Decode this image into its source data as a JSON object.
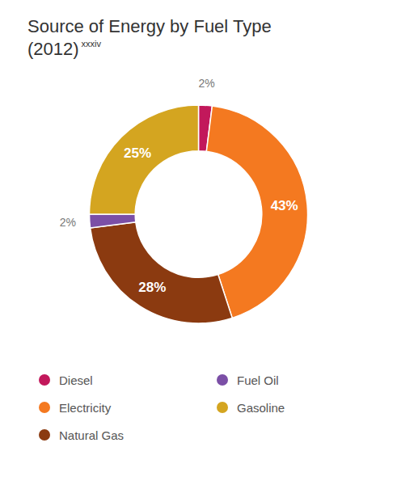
{
  "chart_data": {
    "type": "pie",
    "title": "Source of Energy by Fuel Type",
    "subtitle": "(2012)",
    "annotations": [
      {
        "text": "xxxiv"
      }
    ],
    "categories": [
      "Diesel",
      "Electricity",
      "Natural Gas",
      "Fuel Oil",
      "Gasoline"
    ],
    "values": [
      2,
      43,
      28,
      2,
      25
    ],
    "value_labels": [
      "2%",
      "43%",
      "28%",
      "2%",
      "25%"
    ],
    "colors": [
      "#C2185B",
      "#F47920",
      "#8B3A10",
      "#7B4FA6",
      "#D4A520"
    ],
    "data_labels": true,
    "legend": "bottom"
  }
}
